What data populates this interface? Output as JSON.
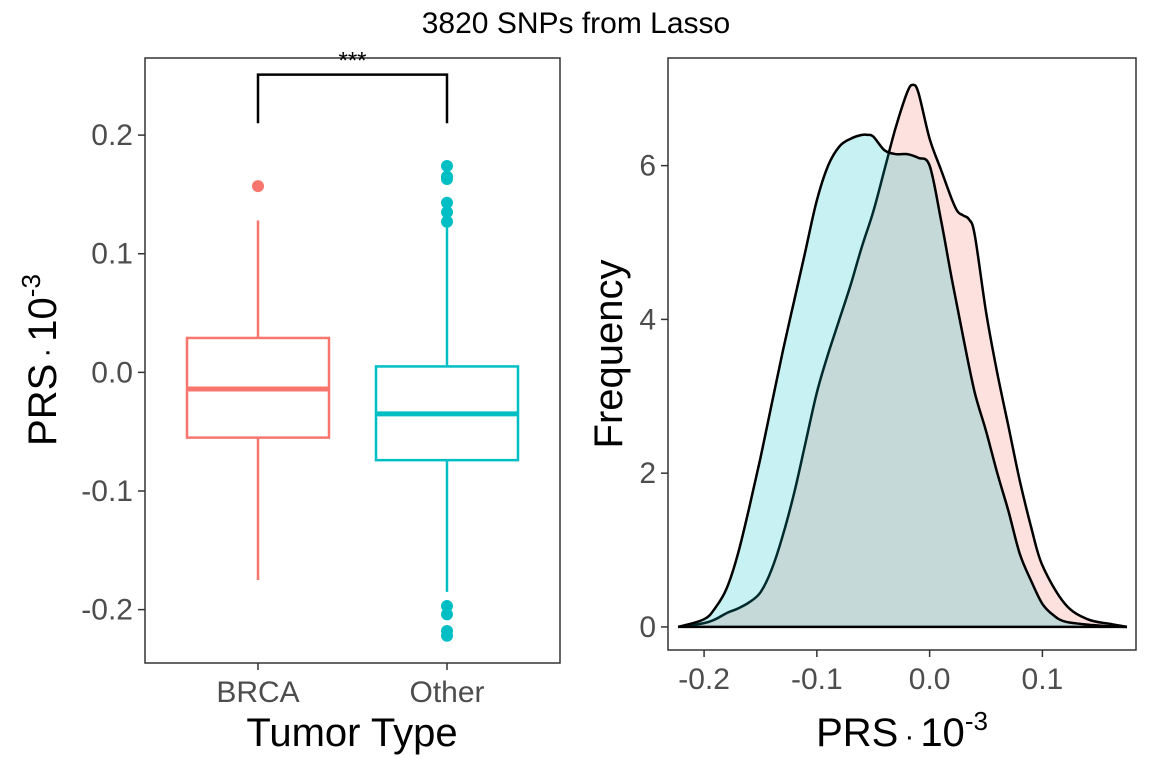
{
  "figure": {
    "title": "3820 SNPs from Lasso",
    "colors": {
      "BRCA": "#F8766D",
      "Other": "#00BFC4",
      "outline": "#000000",
      "tick": "#4d4d4d"
    }
  },
  "chart_data": [
    {
      "type": "boxplot",
      "xlabel": "Tumor Type",
      "ylabel_base": "PRS",
      "ylabel_dot": "·",
      "ylabel_mult": "10",
      "ylabel_exp": "-3",
      "ylim": [
        -0.245,
        0.265
      ],
      "yticks": [
        -0.2,
        -0.1,
        0.0,
        0.1,
        0.2
      ],
      "ytick_labels": [
        "-0.2",
        "-0.1",
        "0.0",
        "0.1",
        "0.2"
      ],
      "categories": [
        "BRCA",
        "Other"
      ],
      "boxes": [
        {
          "name": "BRCA",
          "q1": -0.055,
          "median": -0.014,
          "q3": 0.029,
          "whisker_low": -0.175,
          "whisker_high": 0.128,
          "outliers": [
            0.157
          ]
        },
        {
          "name": "Other",
          "q1": -0.074,
          "median": -0.035,
          "q3": 0.005,
          "whisker_low": -0.185,
          "whisker_high": 0.122,
          "outliers": [
            0.174,
            0.165,
            0.163,
            0.143,
            0.135,
            0.127,
            -0.197,
            -0.204,
            -0.218,
            -0.222
          ]
        }
      ],
      "significance": {
        "label": "***",
        "bracket_y": 0.251,
        "drop_to": 0.21
      }
    },
    {
      "type": "area",
      "xlabel_base": "PRS",
      "xlabel_dot": "·",
      "xlabel_mult": "10",
      "xlabel_exp": "-3",
      "ylabel": "Frequency",
      "xlim": [
        -0.232,
        0.183
      ],
      "ylim": [
        -0.3,
        7.4
      ],
      "xticks": [
        -0.2,
        -0.1,
        0.0,
        0.1
      ],
      "xtick_labels": [
        "-0.2",
        "-0.1",
        "0.0",
        "0.1"
      ],
      "yticks": [
        0,
        2,
        4,
        6
      ],
      "ytick_labels": [
        "0",
        "2",
        "4",
        "6"
      ],
      "series": [
        {
          "name": "BRCA",
          "x": [
            -0.223,
            -0.2,
            -0.19,
            -0.18,
            -0.17,
            -0.16,
            -0.15,
            -0.14,
            -0.13,
            -0.12,
            -0.11,
            -0.1,
            -0.09,
            -0.08,
            -0.07,
            -0.06,
            -0.05,
            -0.04,
            -0.03,
            -0.02,
            -0.015,
            -0.01,
            0.0,
            0.01,
            0.02,
            0.025,
            0.03,
            0.035,
            0.04,
            0.05,
            0.06,
            0.07,
            0.08,
            0.09,
            0.1,
            0.12,
            0.14,
            0.16,
            0.175
          ],
          "y": [
            0.0,
            0.05,
            0.1,
            0.18,
            0.24,
            0.32,
            0.45,
            0.75,
            1.2,
            1.75,
            2.4,
            3.05,
            3.55,
            4.0,
            4.45,
            4.95,
            5.4,
            5.95,
            6.5,
            6.95,
            7.05,
            6.95,
            6.35,
            5.95,
            5.55,
            5.4,
            5.35,
            5.3,
            5.1,
            4.1,
            3.3,
            2.6,
            1.9,
            1.3,
            0.8,
            0.3,
            0.1,
            0.04,
            0.0
          ]
        },
        {
          "name": "Other",
          "x": [
            -0.223,
            -0.2,
            -0.19,
            -0.18,
            -0.17,
            -0.16,
            -0.15,
            -0.14,
            -0.13,
            -0.12,
            -0.11,
            -0.1,
            -0.09,
            -0.08,
            -0.07,
            -0.06,
            -0.055,
            -0.05,
            -0.04,
            -0.03,
            -0.02,
            -0.01,
            0.0,
            0.01,
            0.02,
            0.03,
            0.04,
            0.05,
            0.06,
            0.07,
            0.08,
            0.09,
            0.1,
            0.11,
            0.12,
            0.14,
            0.16,
            0.175
          ],
          "y": [
            0.0,
            0.1,
            0.25,
            0.5,
            0.95,
            1.55,
            2.2,
            2.9,
            3.6,
            4.25,
            4.9,
            5.55,
            6.0,
            6.25,
            6.35,
            6.4,
            6.4,
            6.38,
            6.2,
            6.15,
            6.15,
            6.1,
            6.0,
            5.3,
            4.5,
            3.75,
            3.05,
            2.55,
            2.0,
            1.5,
            0.95,
            0.6,
            0.3,
            0.15,
            0.07,
            0.03,
            0.01,
            0.0
          ]
        }
      ]
    }
  ]
}
